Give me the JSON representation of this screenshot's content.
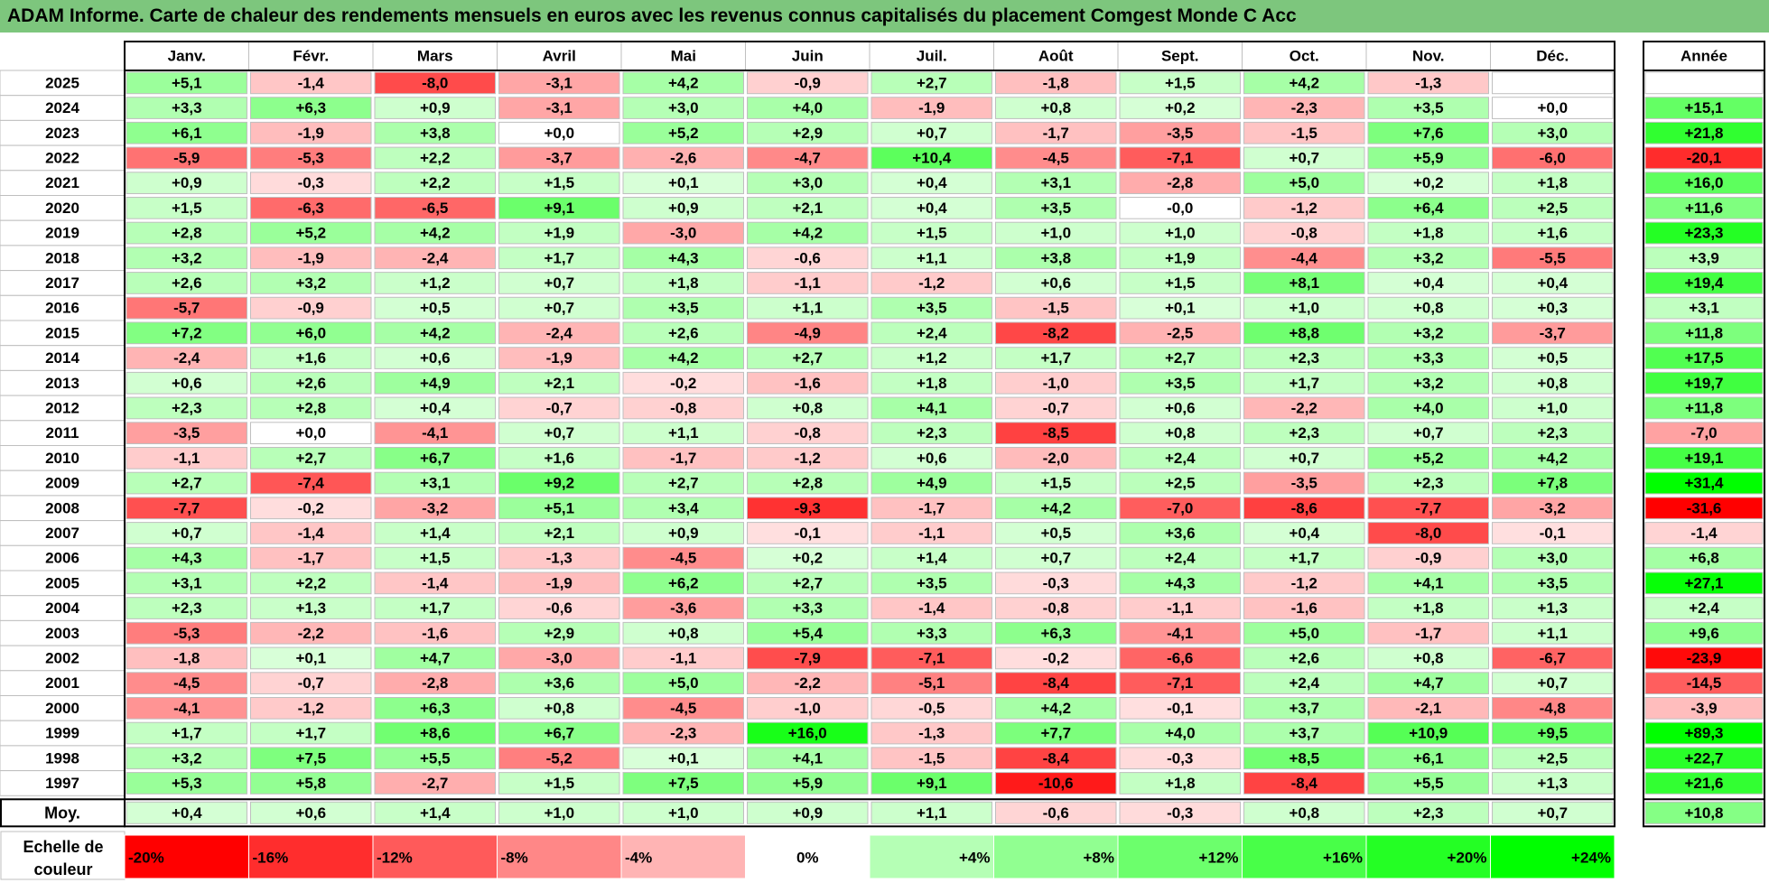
{
  "title": "ADAM Informe. Carte de chaleur des rendements mensuels en euros avec les revenus connus capitalisés du placement Comgest Monde C Acc",
  "chart_data": {
    "type": "heatmap",
    "title": "ADAM Informe. Carte de chaleur des rendements mensuels en euros avec les revenus connus capitalisés du placement Comgest Monde C Acc",
    "columns": [
      "Janv.",
      "Févr.",
      "Mars",
      "Avril",
      "Mai",
      "Juin",
      "Juil.",
      "Août",
      "Sept.",
      "Oct.",
      "Nov.",
      "Déc."
    ],
    "year_header": "Année",
    "rows": [
      {
        "year": "2025",
        "months": [
          "+5,1",
          "-1,4",
          "-8,0",
          "-3,1",
          "+4,2",
          "-0,9",
          "+2,7",
          "-1,8",
          "+1,5",
          "+4,2",
          "-1,3",
          ""
        ],
        "annual": ""
      },
      {
        "year": "2024",
        "months": [
          "+3,3",
          "+6,3",
          "+0,9",
          "-3,1",
          "+3,0",
          "+4,0",
          "-1,9",
          "+0,8",
          "+0,2",
          "-2,3",
          "+3,5",
          "+0,0"
        ],
        "annual": "+15,1"
      },
      {
        "year": "2023",
        "months": [
          "+6,1",
          "-1,9",
          "+3,8",
          "+0,0",
          "+5,2",
          "+2,9",
          "+0,7",
          "-1,7",
          "-3,5",
          "-1,5",
          "+7,6",
          "+3,0"
        ],
        "annual": "+21,8"
      },
      {
        "year": "2022",
        "months": [
          "-5,9",
          "-5,3",
          "+2,2",
          "-3,7",
          "-2,6",
          "-4,7",
          "+10,4",
          "-4,5",
          "-7,1",
          "+0,7",
          "+5,9",
          "-6,0"
        ],
        "annual": "-20,1"
      },
      {
        "year": "2021",
        "months": [
          "+0,9",
          "-0,3",
          "+2,2",
          "+1,5",
          "+0,1",
          "+3,0",
          "+0,4",
          "+3,1",
          "-2,8",
          "+5,0",
          "+0,2",
          "+1,8"
        ],
        "annual": "+16,0"
      },
      {
        "year": "2020",
        "months": [
          "+1,5",
          "-6,3",
          "-6,5",
          "+9,1",
          "+0,9",
          "+2,1",
          "+0,4",
          "+3,5",
          "-0,0",
          "-1,2",
          "+6,4",
          "+2,5"
        ],
        "annual": "+11,6"
      },
      {
        "year": "2019",
        "months": [
          "+2,8",
          "+5,2",
          "+4,2",
          "+1,9",
          "-3,0",
          "+4,2",
          "+1,5",
          "+1,0",
          "+1,0",
          "-0,8",
          "+1,8",
          "+1,6"
        ],
        "annual": "+23,3"
      },
      {
        "year": "2018",
        "months": [
          "+3,2",
          "-1,9",
          "-2,4",
          "+1,7",
          "+4,3",
          "-0,6",
          "+1,1",
          "+3,8",
          "+1,9",
          "-4,4",
          "+3,2",
          "-5,5"
        ],
        "annual": "+3,9"
      },
      {
        "year": "2017",
        "months": [
          "+2,6",
          "+3,2",
          "+1,2",
          "+0,7",
          "+1,8",
          "-1,1",
          "-1,2",
          "+0,6",
          "+1,5",
          "+8,1",
          "+0,4",
          "+0,4"
        ],
        "annual": "+19,4"
      },
      {
        "year": "2016",
        "months": [
          "-5,7",
          "-0,9",
          "+0,5",
          "+0,7",
          "+3,5",
          "+1,1",
          "+3,5",
          "-1,5",
          "+0,1",
          "+1,0",
          "+0,8",
          "+0,3"
        ],
        "annual": "+3,1"
      },
      {
        "year": "2015",
        "months": [
          "+7,2",
          "+6,0",
          "+4,2",
          "-2,4",
          "+2,6",
          "-4,9",
          "+2,4",
          "-8,2",
          "-2,5",
          "+8,8",
          "+3,2",
          "-3,7"
        ],
        "annual": "+11,8"
      },
      {
        "year": "2014",
        "months": [
          "-2,4",
          "+1,6",
          "+0,6",
          "-1,9",
          "+4,2",
          "+2,7",
          "+1,2",
          "+1,7",
          "+2,7",
          "+2,3",
          "+3,3",
          "+0,5"
        ],
        "annual": "+17,5"
      },
      {
        "year": "2013",
        "months": [
          "+0,6",
          "+2,6",
          "+4,9",
          "+2,1",
          "-0,2",
          "-1,6",
          "+1,8",
          "-1,0",
          "+3,5",
          "+1,7",
          "+3,2",
          "+0,8"
        ],
        "annual": "+19,7"
      },
      {
        "year": "2012",
        "months": [
          "+2,3",
          "+2,8",
          "+0,4",
          "-0,7",
          "-0,8",
          "+0,8",
          "+4,1",
          "-0,7",
          "+0,6",
          "-2,2",
          "+4,0",
          "+1,0"
        ],
        "annual": "+11,8"
      },
      {
        "year": "2011",
        "months": [
          "-3,5",
          "+0,0",
          "-4,1",
          "+0,7",
          "+1,1",
          "-0,8",
          "+2,3",
          "-8,5",
          "+0,8",
          "+2,3",
          "+0,7",
          "+2,3"
        ],
        "annual": "-7,0"
      },
      {
        "year": "2010",
        "months": [
          "-1,1",
          "+2,7",
          "+6,7",
          "+1,6",
          "-1,7",
          "-1,2",
          "+0,6",
          "-2,0",
          "+2,4",
          "+0,7",
          "+5,2",
          "+4,2"
        ],
        "annual": "+19,1"
      },
      {
        "year": "2009",
        "months": [
          "+2,7",
          "-7,4",
          "+3,1",
          "+9,2",
          "+2,7",
          "+2,8",
          "+4,9",
          "+1,5",
          "+2,5",
          "-3,5",
          "+2,3",
          "+7,8"
        ],
        "annual": "+31,4"
      },
      {
        "year": "2008",
        "months": [
          "-7,7",
          "-0,2",
          "-3,2",
          "+5,1",
          "+3,4",
          "-9,3",
          "-1,7",
          "+4,2",
          "-7,0",
          "-8,6",
          "-7,7",
          "-3,2"
        ],
        "annual": "-31,6"
      },
      {
        "year": "2007",
        "months": [
          "+0,7",
          "-1,4",
          "+1,4",
          "+2,1",
          "+0,9",
          "-0,1",
          "-1,1",
          "+0,5",
          "+3,6",
          "+0,4",
          "-8,0",
          "-0,1"
        ],
        "annual": "-1,4"
      },
      {
        "year": "2006",
        "months": [
          "+4,3",
          "-1,7",
          "+1,5",
          "-1,3",
          "-4,5",
          "+0,2",
          "+1,4",
          "+0,7",
          "+2,4",
          "+1,7",
          "-0,9",
          "+3,0"
        ],
        "annual": "+6,8"
      },
      {
        "year": "2005",
        "months": [
          "+3,1",
          "+2,2",
          "-1,4",
          "-1,9",
          "+6,2",
          "+2,7",
          "+3,5",
          "-0,3",
          "+4,3",
          "-1,2",
          "+4,1",
          "+3,5"
        ],
        "annual": "+27,1"
      },
      {
        "year": "2004",
        "months": [
          "+2,3",
          "+1,3",
          "+1,7",
          "-0,6",
          "-3,6",
          "+3,3",
          "-1,4",
          "-0,8",
          "-1,1",
          "-1,6",
          "+1,8",
          "+1,3"
        ],
        "annual": "+2,4"
      },
      {
        "year": "2003",
        "months": [
          "-5,3",
          "-2,2",
          "-1,6",
          "+2,9",
          "+0,8",
          "+5,4",
          "+3,3",
          "+6,3",
          "-4,1",
          "+5,0",
          "-1,7",
          "+1,1"
        ],
        "annual": "+9,6"
      },
      {
        "year": "2002",
        "months": [
          "-1,8",
          "+0,1",
          "+4,7",
          "-3,0",
          "-1,1",
          "-7,9",
          "-7,1",
          "-0,2",
          "-6,6",
          "+2,6",
          "+0,8",
          "-6,7"
        ],
        "annual": "-23,9"
      },
      {
        "year": "2001",
        "months": [
          "-4,5",
          "-0,7",
          "-2,8",
          "+3,6",
          "+5,0",
          "-2,2",
          "-5,1",
          "-8,4",
          "-7,1",
          "+2,4",
          "+4,7",
          "+0,7"
        ],
        "annual": "-14,5"
      },
      {
        "year": "2000",
        "months": [
          "-4,1",
          "-1,2",
          "+6,3",
          "+0,8",
          "-4,5",
          "-1,0",
          "-0,5",
          "+4,2",
          "-0,1",
          "+3,7",
          "-2,1",
          "-4,8"
        ],
        "annual": "-3,9"
      },
      {
        "year": "1999",
        "months": [
          "+1,7",
          "+1,7",
          "+8,6",
          "+6,7",
          "-2,3",
          "+16,0",
          "-1,3",
          "+7,7",
          "+4,0",
          "+3,7",
          "+10,9",
          "+9,5"
        ],
        "annual": "+89,3"
      },
      {
        "year": "1998",
        "months": [
          "+3,2",
          "+7,5",
          "+5,5",
          "-5,2",
          "+0,1",
          "+4,1",
          "-1,5",
          "-8,4",
          "-0,3",
          "+8,5",
          "+6,1",
          "+2,5"
        ],
        "annual": "+22,7"
      },
      {
        "year": "1997",
        "months": [
          "+5,3",
          "+5,8",
          "-2,7",
          "+1,5",
          "+7,5",
          "+5,9",
          "+9,1",
          "-10,6",
          "+1,8",
          "-8,4",
          "+5,5",
          "+1,3"
        ],
        "annual": "+21,6"
      }
    ],
    "average_row": {
      "label": "Moy.",
      "months": [
        "+0,4",
        "+0,6",
        "+1,4",
        "+1,0",
        "+1,0",
        "+0,9",
        "+1,1",
        "-0,6",
        "-0,3",
        "+0,8",
        "+2,3",
        "+0,7"
      ],
      "annual": "+10,8"
    },
    "scale": {
      "label": "Echelle de couleur",
      "entries": [
        {
          "label": "-20%",
          "value": -20
        },
        {
          "label": "-16%",
          "value": -16
        },
        {
          "label": "-12%",
          "value": -12
        },
        {
          "label": "-8%",
          "value": -8
        },
        {
          "label": "-4%",
          "value": -4
        },
        {
          "label": "0%",
          "value": 0
        },
        {
          "label": "+4%",
          "value": 4
        },
        {
          "label": "+8%",
          "value": 8
        },
        {
          "label": "+12%",
          "value": 12
        },
        {
          "label": "+16%",
          "value": 16
        },
        {
          "label": "+20%",
          "value": 20
        },
        {
          "label": "+24%",
          "value": 24
        }
      ]
    },
    "colors": {
      "title_bg": "#7dc67d",
      "negative_max": "#ff0000",
      "positive_max": "#00ff00",
      "neutral": "#ffffff",
      "border": "#bfbfbf",
      "frame": "#000000"
    }
  }
}
